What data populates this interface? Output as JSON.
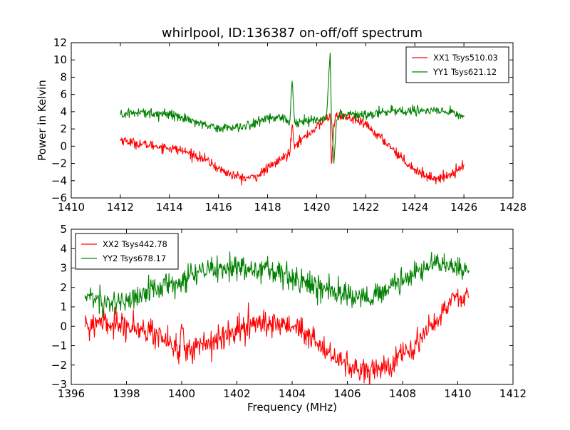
{
  "chart_data": [
    {
      "type": "line",
      "title": "whirlpool, ID:136387 on-off/off spectrum",
      "xlabel": "",
      "ylabel": "Power in Kelvin",
      "xlim": [
        1410,
        1428
      ],
      "ylim": [
        -6,
        12
      ],
      "xticks": [
        1410,
        1412,
        1414,
        1416,
        1418,
        1420,
        1422,
        1424,
        1426,
        1428
      ],
      "xtick_labels": [
        "1410",
        "1412",
        "1414",
        "1416",
        "1418",
        "1420",
        "1422",
        "1424",
        "1426",
        "1428"
      ],
      "yticks": [
        -6,
        -4,
        -2,
        0,
        2,
        4,
        6,
        8,
        10,
        12
      ],
      "ytick_labels": [
        "−6",
        "−4",
        "−2",
        "0",
        "2",
        "4",
        "6",
        "8",
        "10",
        "12"
      ],
      "grid": false,
      "legend_position": "top-right",
      "series": [
        {
          "name": "XX1 Tsys510.03",
          "color": "#ff0000",
          "x": [
            1412.0,
            1412.5,
            1413.0,
            1413.5,
            1414.0,
            1414.5,
            1415.0,
            1415.5,
            1416.0,
            1416.5,
            1417.0,
            1417.5,
            1418.0,
            1418.5,
            1418.9,
            1419.0,
            1419.1,
            1419.5,
            1420.0,
            1420.4,
            1420.55,
            1420.6,
            1420.7,
            1420.8,
            1421.0,
            1421.5,
            1422.0,
            1422.5,
            1423.0,
            1423.5,
            1424.0,
            1424.5,
            1425.0,
            1425.5,
            1426.0
          ],
          "y": [
            0.8,
            0.4,
            0.2,
            0.0,
            -0.2,
            -0.5,
            -1.0,
            -1.6,
            -2.6,
            -3.3,
            -3.7,
            -3.6,
            -2.6,
            -1.6,
            -0.8,
            2.5,
            0.2,
            1.0,
            2.2,
            3.2,
            3.5,
            -2.0,
            2.2,
            3.5,
            3.5,
            3.1,
            2.5,
            1.2,
            0.0,
            -1.5,
            -2.7,
            -3.5,
            -3.8,
            -3.2,
            -2.1
          ]
        },
        {
          "name": "YY1 Tsys621.12",
          "color": "#008000",
          "x": [
            1412.0,
            1412.5,
            1413.0,
            1413.5,
            1414.0,
            1414.5,
            1415.0,
            1415.5,
            1416.0,
            1416.5,
            1417.0,
            1417.5,
            1418.0,
            1418.5,
            1418.9,
            1419.0,
            1419.1,
            1419.5,
            1420.0,
            1420.4,
            1420.55,
            1420.6,
            1420.7,
            1420.8,
            1421.0,
            1421.5,
            1422.0,
            1422.5,
            1423.0,
            1423.5,
            1424.0,
            1424.5,
            1425.0,
            1425.5,
            1426.0
          ],
          "y": [
            3.6,
            3.9,
            3.9,
            3.8,
            3.7,
            3.4,
            2.9,
            2.5,
            2.1,
            2.2,
            2.3,
            2.6,
            3.4,
            3.3,
            2.8,
            7.5,
            2.7,
            2.9,
            3.0,
            3.5,
            10.8,
            3.5,
            -2.0,
            3.0,
            3.8,
            3.7,
            3.7,
            3.9,
            4.0,
            4.1,
            4.1,
            4.1,
            4.0,
            3.9,
            3.4
          ]
        }
      ]
    },
    {
      "type": "line",
      "title": "",
      "xlabel": "Frequency (MHz)",
      "ylabel": "",
      "xlim": [
        1396,
        1412
      ],
      "ylim": [
        -3,
        5
      ],
      "xticks": [
        1396,
        1398,
        1400,
        1402,
        1404,
        1406,
        1408,
        1410,
        1412
      ],
      "xtick_labels": [
        "1396",
        "1398",
        "1400",
        "1402",
        "1404",
        "1406",
        "1408",
        "1410",
        "1412"
      ],
      "yticks": [
        -3,
        -2,
        -1,
        0,
        1,
        2,
        3,
        4,
        5
      ],
      "ytick_labels": [
        "−3",
        "−2",
        "−1",
        "0",
        "1",
        "2",
        "3",
        "4",
        "5"
      ],
      "grid": false,
      "legend_position": "top-left",
      "series": [
        {
          "name": "XX2 Tsys442.78",
          "color": "#ff0000",
          "x": [
            1396.5,
            1397.0,
            1397.5,
            1398.0,
            1398.5,
            1399.0,
            1399.5,
            1399.8,
            1399.9,
            1400.0,
            1400.1,
            1400.5,
            1401.0,
            1401.5,
            1402.0,
            1402.5,
            1403.0,
            1403.5,
            1404.0,
            1404.5,
            1405.0,
            1405.5,
            1406.0,
            1406.5,
            1407.0,
            1407.5,
            1408.0,
            1408.5,
            1409.0,
            1409.5,
            1410.0,
            1410.4
          ],
          "y": [
            0.0,
            0.1,
            0.15,
            0.1,
            -0.1,
            -0.4,
            -0.7,
            -1.0,
            -1.7,
            0.1,
            -1.2,
            -1.1,
            -0.9,
            -0.6,
            -0.2,
            0.1,
            0.1,
            0.1,
            0.0,
            -0.4,
            -1.0,
            -1.6,
            -2.0,
            -2.2,
            -2.2,
            -2.0,
            -1.5,
            -0.8,
            0.0,
            0.8,
            1.6,
            1.5
          ]
        },
        {
          "name": "YY2 Tsys678.17",
          "color": "#008000",
          "x": [
            1396.5,
            1397.0,
            1397.5,
            1398.0,
            1398.5,
            1399.0,
            1399.5,
            1399.8,
            1399.9,
            1400.0,
            1400.1,
            1400.5,
            1401.0,
            1401.5,
            1402.0,
            1402.5,
            1403.0,
            1403.5,
            1404.0,
            1404.5,
            1405.0,
            1405.5,
            1406.0,
            1406.5,
            1407.0,
            1407.5,
            1408.0,
            1408.5,
            1409.0,
            1409.5,
            1410.0,
            1410.4
          ],
          "y": [
            1.5,
            1.4,
            1.2,
            1.3,
            1.5,
            1.9,
            2.1,
            2.2,
            2.2,
            2.3,
            2.4,
            2.6,
            2.9,
            3.0,
            3.0,
            2.9,
            2.9,
            2.7,
            2.5,
            2.2,
            2.0,
            1.8,
            1.6,
            1.5,
            1.6,
            1.9,
            2.3,
            2.8,
            3.1,
            3.2,
            3.0,
            2.8
          ]
        }
      ]
    }
  ]
}
